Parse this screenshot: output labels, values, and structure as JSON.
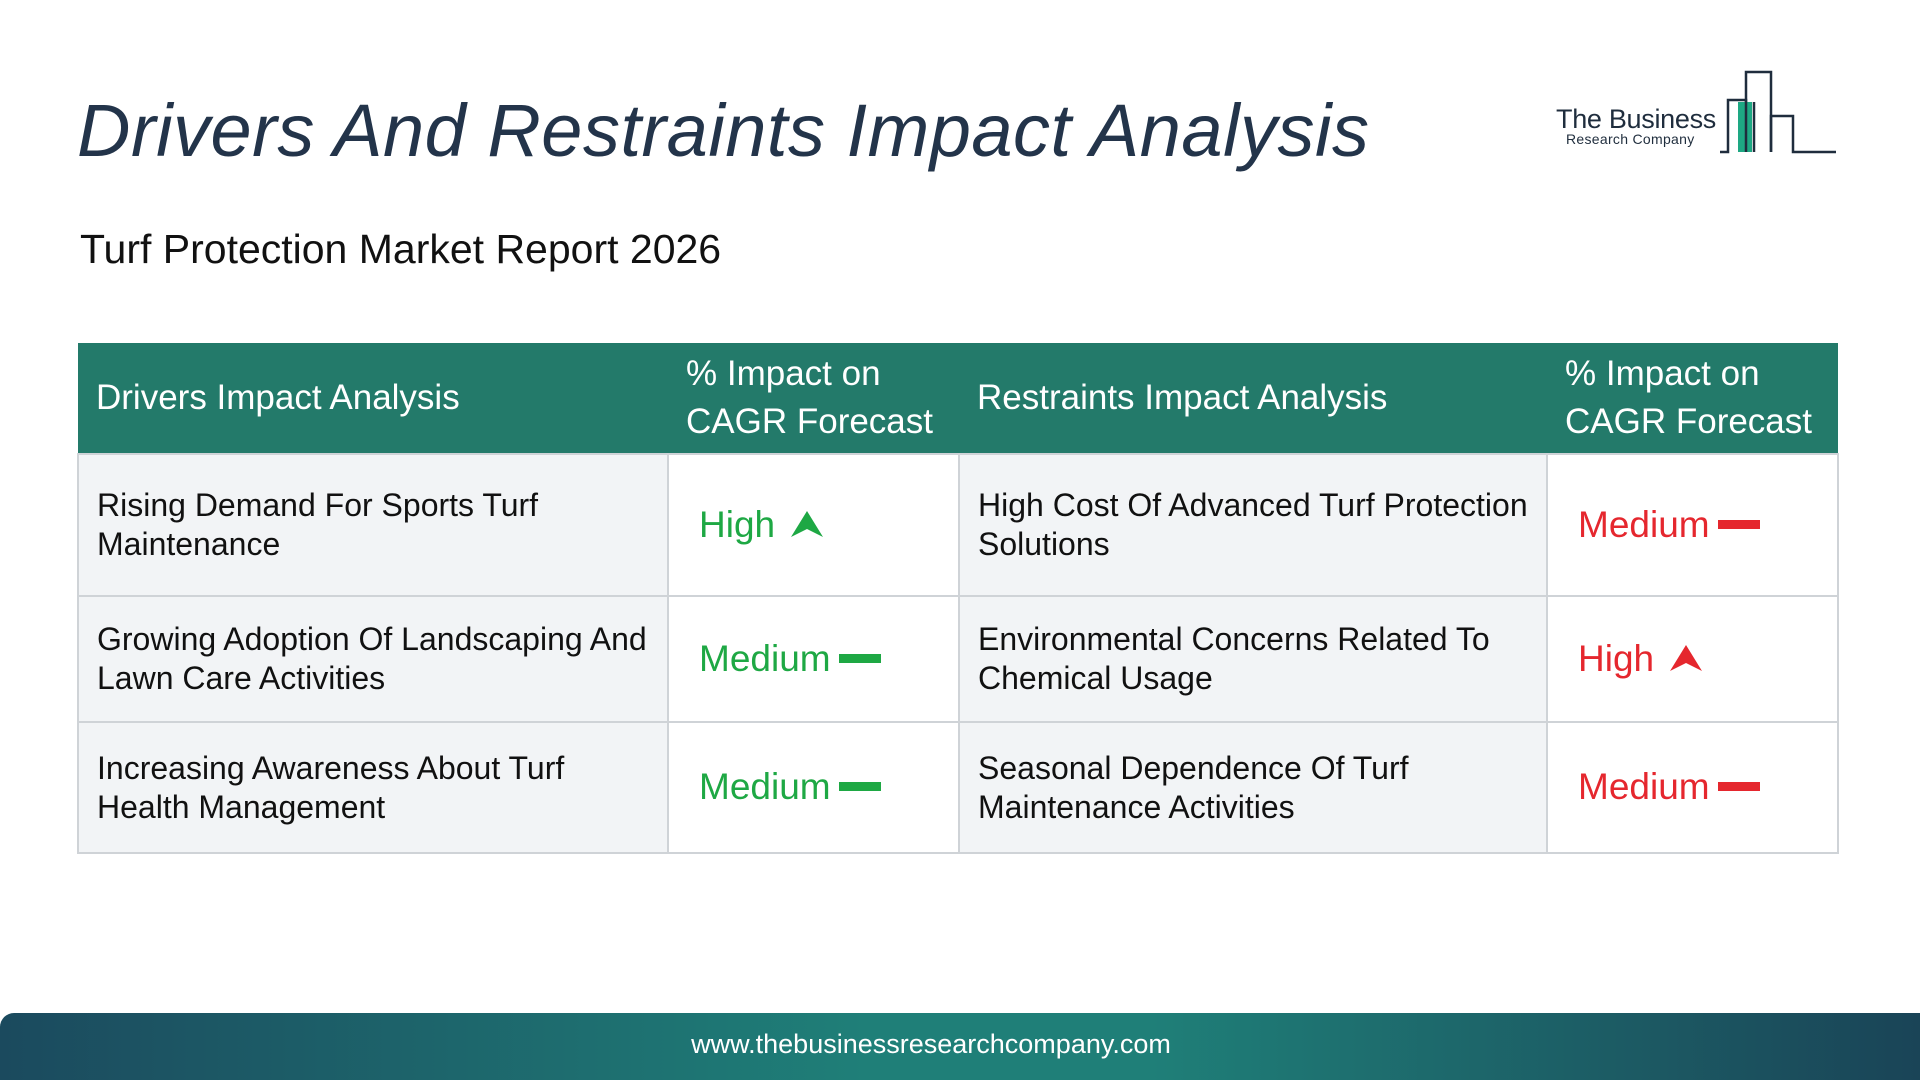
{
  "header": {
    "title": "Drivers And Restraints Impact Analysis",
    "subtitle": "Turf Protection Market Report 2026"
  },
  "logo": {
    "name": "The Business",
    "sub": "Research Company"
  },
  "table": {
    "columns": [
      "Drivers Impact Analysis",
      "% Impact on CAGR Forecast",
      "Restraints Impact Analysis",
      "% Impact on CAGR Forecast"
    ],
    "rows": [
      {
        "driver": "Rising Demand For Sports Turf Maintenance",
        "driver_impact": "High",
        "restraint": "High Cost Of Advanced Turf Protection Solutions",
        "restraint_impact": "Medium"
      },
      {
        "driver": "Growing Adoption Of Landscaping And Lawn Care Activities",
        "driver_impact": "Medium",
        "restraint": "Environmental Concerns Related To Chemical Usage",
        "restraint_impact": "High"
      },
      {
        "driver": "Increasing Awareness About Turf Health Management",
        "driver_impact": "Medium",
        "restraint": "Seasonal Dependence Of Turf Maintenance Activities",
        "restraint_impact": "Medium"
      }
    ]
  },
  "colors": {
    "header_bg": "#237a6a",
    "driver_impact": "#1ea844",
    "restraint_impact": "#e5272e",
    "title": "#23344a"
  },
  "footer": {
    "url": "www.thebusinessresearchcompany.com"
  }
}
